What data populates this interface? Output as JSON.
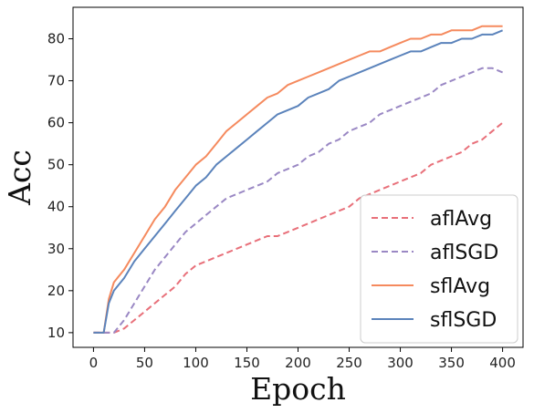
{
  "chart_data": {
    "type": "line",
    "title": "",
    "xlabel": "Epoch",
    "ylabel": "Acc",
    "xlim": [
      -20,
      420
    ],
    "ylim": [
      6.5,
      87.5
    ],
    "xticks": [
      0,
      50,
      100,
      150,
      200,
      250,
      300,
      350,
      400
    ],
    "yticks": [
      10,
      20,
      30,
      40,
      50,
      60,
      70,
      80
    ],
    "grid": false,
    "legend_position": "lower-right",
    "series": [
      {
        "name": "aflAvg",
        "color": "#e8707a",
        "dash": "dashed",
        "x": [
          0,
          20,
          30,
          40,
          50,
          60,
          70,
          80,
          90,
          100,
          110,
          120,
          130,
          140,
          150,
          160,
          170,
          180,
          190,
          200,
          210,
          220,
          230,
          240,
          250,
          260,
          270,
          280,
          290,
          300,
          310,
          320,
          330,
          340,
          350,
          360,
          370,
          380,
          390,
          400
        ],
        "y": [
          10,
          10,
          11,
          13,
          15,
          17,
          19,
          21,
          24,
          26,
          27,
          28,
          29,
          30,
          31,
          32,
          33,
          33,
          34,
          35,
          36,
          37,
          38,
          39,
          40,
          42,
          43,
          44,
          45,
          46,
          47,
          48,
          50,
          51,
          52,
          53,
          55,
          56,
          58,
          60
        ]
      },
      {
        "name": "aflSGD",
        "color": "#9a88c4",
        "dash": "dashed",
        "x": [
          0,
          20,
          30,
          40,
          50,
          60,
          70,
          80,
          90,
          100,
          110,
          120,
          130,
          140,
          150,
          160,
          170,
          180,
          190,
          200,
          210,
          220,
          230,
          240,
          250,
          260,
          270,
          280,
          290,
          300,
          310,
          320,
          330,
          340,
          350,
          360,
          370,
          380,
          390,
          400
        ],
        "y": [
          10,
          10,
          13,
          17,
          21,
          25,
          28,
          31,
          34,
          36,
          38,
          40,
          42,
          43,
          44,
          45,
          46,
          48,
          49,
          50,
          52,
          53,
          55,
          56,
          58,
          59,
          60,
          62,
          63,
          64,
          65,
          66,
          67,
          69,
          70,
          71,
          72,
          73,
          73,
          72
        ]
      },
      {
        "name": "sflAvg",
        "color": "#f58a5e",
        "dash": "solid",
        "x": [
          0,
          10,
          15,
          20,
          30,
          40,
          50,
          60,
          70,
          80,
          90,
          100,
          110,
          120,
          130,
          140,
          150,
          160,
          170,
          180,
          190,
          200,
          210,
          220,
          230,
          240,
          250,
          260,
          270,
          280,
          290,
          300,
          310,
          320,
          330,
          340,
          350,
          360,
          370,
          380,
          390,
          400
        ],
        "y": [
          10,
          10,
          18,
          22,
          25,
          29,
          33,
          37,
          40,
          44,
          47,
          50,
          52,
          55,
          58,
          60,
          62,
          64,
          66,
          67,
          69,
          70,
          71,
          72,
          73,
          74,
          75,
          76,
          77,
          77,
          78,
          79,
          80,
          80,
          81,
          81,
          82,
          82,
          82,
          83,
          83,
          83
        ]
      },
      {
        "name": "sflSGD",
        "color": "#5b83bb",
        "dash": "solid",
        "x": [
          0,
          10,
          15,
          20,
          30,
          40,
          50,
          60,
          70,
          80,
          90,
          100,
          110,
          120,
          130,
          140,
          150,
          160,
          170,
          180,
          190,
          200,
          210,
          220,
          230,
          240,
          250,
          260,
          270,
          280,
          290,
          300,
          310,
          320,
          330,
          340,
          350,
          360,
          370,
          380,
          390,
          400
        ],
        "y": [
          10,
          10,
          17,
          20,
          23,
          27,
          30,
          33,
          36,
          39,
          42,
          45,
          47,
          50,
          52,
          54,
          56,
          58,
          60,
          62,
          63,
          64,
          66,
          67,
          68,
          70,
          71,
          72,
          73,
          74,
          75,
          76,
          77,
          77,
          78,
          79,
          79,
          80,
          80,
          81,
          81,
          82
        ]
      }
    ]
  }
}
